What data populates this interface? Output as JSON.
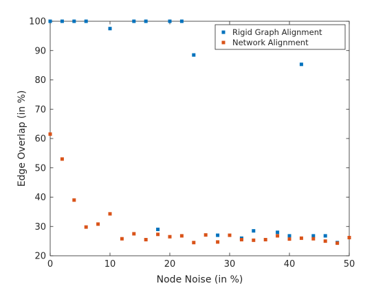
{
  "chart_data": {
    "type": "scatter",
    "xlabel": "Node Noise (in %)",
    "ylabel": "Edge Overlap (in %)",
    "xlim": [
      0,
      50
    ],
    "ylim": [
      20,
      100
    ],
    "xticks": [
      0,
      10,
      20,
      30,
      40,
      50
    ],
    "yticks": [
      20,
      30,
      40,
      50,
      60,
      70,
      80,
      90,
      100
    ],
    "grid": false,
    "legend_position": "top-right",
    "series": [
      {
        "name": "Rigid Graph Alignment",
        "color": "#0072BD",
        "marker": "square",
        "points": [
          [
            0,
            100
          ],
          [
            2,
            100
          ],
          [
            4,
            100
          ],
          [
            6,
            100
          ],
          [
            10,
            97.5
          ],
          [
            14,
            100
          ],
          [
            16,
            100
          ],
          [
            20,
            100
          ],
          [
            22,
            100
          ],
          [
            24,
            88.5
          ],
          [
            18,
            29
          ],
          [
            28,
            27
          ],
          [
            32,
            26
          ],
          [
            34,
            28.5
          ],
          [
            38,
            28
          ],
          [
            40,
            26.8
          ],
          [
            42,
            85.3
          ],
          [
            44,
            26.8
          ],
          [
            46,
            26.8
          ],
          [
            48,
            24.5
          ]
        ]
      },
      {
        "name": "Network Alignment",
        "color": "#D95319",
        "marker": "square",
        "points": [
          [
            0,
            61.5
          ],
          [
            2,
            53
          ],
          [
            4,
            39
          ],
          [
            6,
            29.8
          ],
          [
            8,
            30.8
          ],
          [
            10,
            34.3
          ],
          [
            12,
            25.8
          ],
          [
            14,
            27.5
          ],
          [
            16,
            25.5
          ],
          [
            18,
            27.3
          ],
          [
            20,
            26.5
          ],
          [
            22,
            26.8
          ],
          [
            24,
            24.5
          ],
          [
            26,
            27.1
          ],
          [
            28,
            24.7
          ],
          [
            30,
            27
          ],
          [
            32,
            25.5
          ],
          [
            34,
            25.3
          ],
          [
            36,
            25.5
          ],
          [
            38,
            26.8
          ],
          [
            40,
            25.7
          ],
          [
            42,
            26
          ],
          [
            44,
            25.8
          ],
          [
            46,
            25
          ],
          [
            48,
            24.3
          ],
          [
            50,
            26.2
          ]
        ]
      }
    ]
  }
}
